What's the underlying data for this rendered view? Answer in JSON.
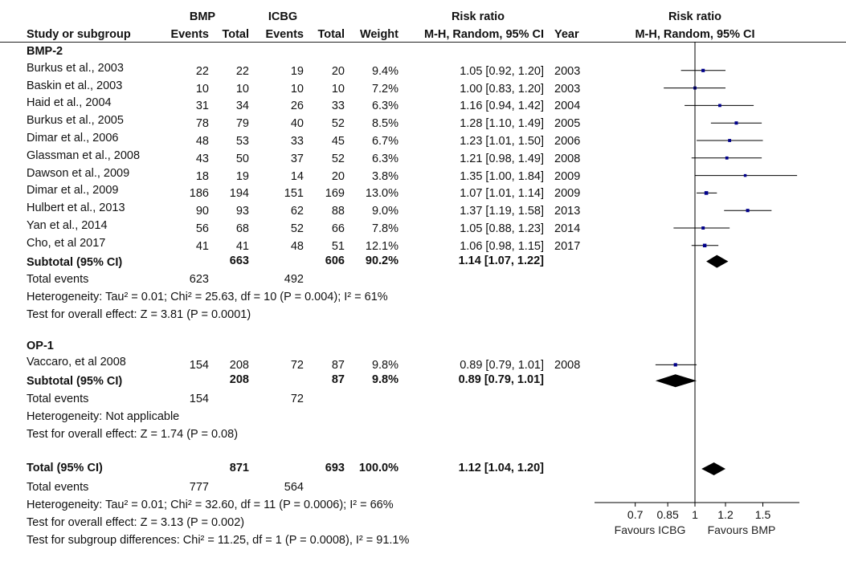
{
  "header": {
    "group1": "BMP",
    "group2": "ICBG",
    "study_col": "Study or subgroup",
    "events": "Events",
    "total": "Total",
    "weight": "Weight",
    "rr_title": "Risk ratio",
    "rr_method": "M-H, Random, 95% CI",
    "year": "Year",
    "plot_title": "Risk ratio",
    "plot_method": "M-H, Random, 95% CI"
  },
  "chart_data": {
    "type": "forest",
    "scale": "log",
    "null_value": 1,
    "xticks": [
      "0.7",
      "0.85",
      "1",
      "1.2",
      "1.5"
    ],
    "xtick_values": [
      0.7,
      0.85,
      1,
      1.2,
      1.5
    ],
    "xlim": [
      0.6,
      1.9
    ],
    "favours_left": "Favours ICBG",
    "favours_right": "Favours BMP",
    "subgroups": [
      {
        "name": "BMP-2",
        "studies": [
          {
            "study": "Burkus et al., 2003",
            "e1": "22",
            "t1": "22",
            "e2": "19",
            "t2": "20",
            "weight": "9.4%",
            "ci": "1.05 [0.92, 1.20]",
            "year": "2003",
            "rr": 1.05,
            "lo": 0.92,
            "hi": 1.2,
            "w": 9.4
          },
          {
            "study": "Baskin et al., 2003",
            "e1": "10",
            "t1": "10",
            "e2": "10",
            "t2": "10",
            "weight": "7.2%",
            "ci": "1.00 [0.83, 1.20]",
            "year": "2003",
            "rr": 1.0,
            "lo": 0.83,
            "hi": 1.2,
            "w": 7.2
          },
          {
            "study": "Haid et al., 2004",
            "e1": "31",
            "t1": "34",
            "e2": "26",
            "t2": "33",
            "weight": "6.3%",
            "ci": "1.16 [0.94, 1.42]",
            "year": "2004",
            "rr": 1.16,
            "lo": 0.94,
            "hi": 1.42,
            "w": 6.3
          },
          {
            "study": "Burkus et al., 2005",
            "e1": "78",
            "t1": "79",
            "e2": "40",
            "t2": "52",
            "weight": "8.5%",
            "ci": "1.28 [1.10, 1.49]",
            "year": "2005",
            "rr": 1.28,
            "lo": 1.1,
            "hi": 1.49,
            "w": 8.5
          },
          {
            "study": "Dimar et al., 2006",
            "e1": "48",
            "t1": "53",
            "e2": "33",
            "t2": "45",
            "weight": "6.7%",
            "ci": "1.23 [1.01, 1.50]",
            "year": "2006",
            "rr": 1.23,
            "lo": 1.01,
            "hi": 1.5,
            "w": 6.7
          },
          {
            "study": "Glassman et al., 2008",
            "e1": "43",
            "t1": "50",
            "e2": "37",
            "t2": "52",
            "weight": "6.3%",
            "ci": "1.21 [0.98, 1.49]",
            "year": "2008",
            "rr": 1.21,
            "lo": 0.98,
            "hi": 1.49,
            "w": 6.3
          },
          {
            "study": "Dawson et al., 2009",
            "e1": "18",
            "t1": "19",
            "e2": "14",
            "t2": "20",
            "weight": "3.8%",
            "ci": "1.35 [1.00, 1.84]",
            "year": "2009",
            "rr": 1.35,
            "lo": 1.0,
            "hi": 1.84,
            "w": 3.8
          },
          {
            "study": "Dimar et al., 2009",
            "e1": "186",
            "t1": "194",
            "e2": "151",
            "t2": "169",
            "weight": "13.0%",
            "ci": "1.07 [1.01, 1.14]",
            "year": "2009",
            "rr": 1.07,
            "lo": 1.01,
            "hi": 1.14,
            "w": 13.0
          },
          {
            "study": "Hulbert et al., 2013",
            "e1": "90",
            "t1": "93",
            "e2": "62",
            "t2": "88",
            "weight": "9.0%",
            "ci": "1.37 [1.19, 1.58]",
            "year": "2013",
            "rr": 1.37,
            "lo": 1.19,
            "hi": 1.58,
            "w": 9.0
          },
          {
            "study": "Yan et al., 2014",
            "e1": "56",
            "t1": "68",
            "e2": "52",
            "t2": "66",
            "weight": "7.8%",
            "ci": "1.05 [0.88, 1.23]",
            "year": "2014",
            "rr": 1.05,
            "lo": 0.88,
            "hi": 1.23,
            "w": 7.8
          },
          {
            "study": "Cho, et al 2017",
            "e1": "41",
            "t1": "41",
            "e2": "48",
            "t2": "51",
            "weight": "12.1%",
            "ci": "1.06 [0.98, 1.15]",
            "year": "2017",
            "rr": 1.06,
            "lo": 0.98,
            "hi": 1.15,
            "w": 12.1
          }
        ],
        "subtotal": {
          "label": "Subtotal (95% CI)",
          "t1": "663",
          "t2": "606",
          "weight": "90.2%",
          "ci": "1.14 [1.07, 1.22]",
          "rr": 1.14,
          "lo": 1.07,
          "hi": 1.22
        },
        "total_events": {
          "label": "Total events",
          "e1": "623",
          "e2": "492"
        },
        "heterogeneity": "Heterogeneity: Tau² = 0.01; Chi² = 25.63, df = 10 (P = 0.004); I² = 61%",
        "overall": "Test for overall effect: Z = 3.81 (P = 0.0001)"
      },
      {
        "name": "OP-1",
        "studies": [
          {
            "study": "Vaccaro, et al 2008",
            "e1": "154",
            "t1": "208",
            "e2": "72",
            "t2": "87",
            "weight": "9.8%",
            "ci": "0.89 [0.79, 1.01]",
            "year": "2008",
            "rr": 0.89,
            "lo": 0.79,
            "hi": 1.01,
            "w": 9.8
          }
        ],
        "subtotal": {
          "label": "Subtotal (95% CI)",
          "t1": "208",
          "t2": "87",
          "weight": "9.8%",
          "ci": "0.89 [0.79, 1.01]",
          "rr": 0.89,
          "lo": 0.79,
          "hi": 1.01
        },
        "total_events": {
          "label": "Total events",
          "e1": "154",
          "e2": "72"
        },
        "heterogeneity": "Heterogeneity: Not applicable",
        "overall": "Test for overall effect: Z = 1.74 (P = 0.08)"
      }
    ],
    "total": {
      "label": "Total (95% CI)",
      "t1": "871",
      "t2": "693",
      "weight": "100.0%",
      "ci": "1.12 [1.04, 1.20]",
      "rr": 1.12,
      "lo": 1.04,
      "hi": 1.2
    },
    "total_events": {
      "label": "Total events",
      "e1": "777",
      "e2": "564"
    },
    "heterogeneity": "Heterogeneity: Tau² = 0.01; Chi² = 32.60, df = 11 (P = 0.0006); I² = 66%",
    "overall": "Test for overall effect: Z = 3.13 (P = 0.002)",
    "subgroup_diff": "Test for subgroup differences: Chi² = 11.25, df = 1 (P = 0.0008), I² = 91.1%"
  }
}
